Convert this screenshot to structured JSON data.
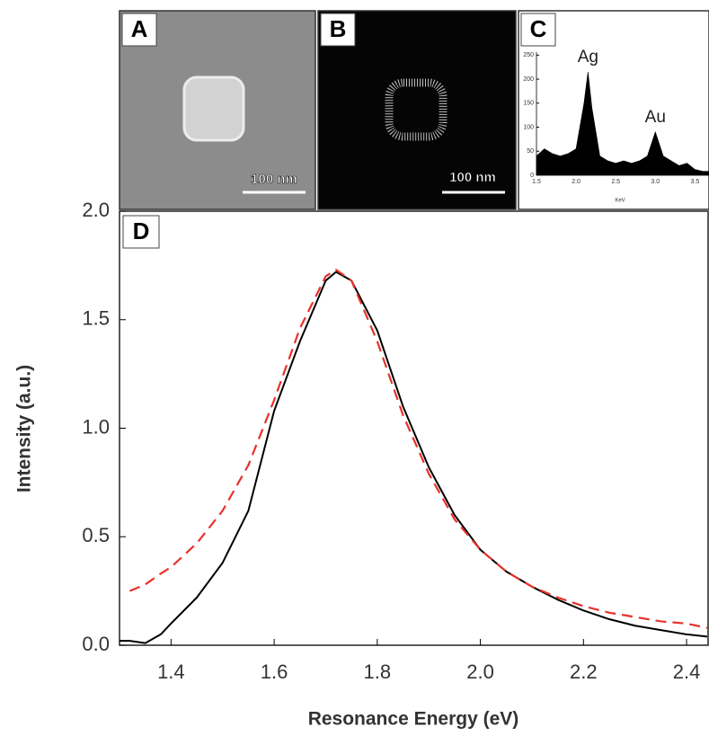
{
  "images": [
    {
      "label": "A",
      "scale_bar": "100 nm"
    },
    {
      "label": "B",
      "scale_bar": "100 nm"
    }
  ],
  "chart_data": [
    {
      "type": "area",
      "label": "C",
      "x_label": "KeV",
      "annotations": [
        {
          "text": "Ag",
          "x": 2.15
        },
        {
          "text": "Au",
          "x": 3.0
        }
      ],
      "x": [
        1.5,
        1.6,
        1.7,
        1.8,
        1.9,
        2.0,
        2.1,
        2.15,
        2.2,
        2.3,
        2.4,
        2.5,
        2.6,
        2.7,
        2.8,
        2.9,
        3.0,
        3.1,
        3.2,
        3.3,
        3.4,
        3.5,
        3.6,
        3.7
      ],
      "values": [
        40,
        55,
        45,
        40,
        45,
        55,
        150,
        215,
        140,
        40,
        30,
        25,
        30,
        25,
        30,
        40,
        90,
        40,
        30,
        20,
        25,
        12,
        8,
        8
      ],
      "color": "#000000",
      "xlim": [
        1.5,
        3.7
      ],
      "ylim": [
        0,
        260
      ],
      "xticks": [
        1.5,
        {
          "value": 2,
          "label": "2.0"
        },
        2.5,
        {
          "value": 3,
          "label": "3.0"
        },
        3.5
      ],
      "yticks": [
        0,
        50,
        100,
        150,
        200,
        250
      ]
    },
    {
      "type": "line",
      "label": "D",
      "x_label": "Resonance Energy (eV)",
      "y_label": "Intensity (a.u.)",
      "x": [
        1.3,
        1.32,
        1.35,
        1.38,
        1.4,
        1.45,
        1.5,
        1.55,
        1.6,
        1.65,
        1.7,
        1.72,
        1.75,
        1.8,
        1.85,
        1.9,
        1.95,
        2.0,
        2.05,
        2.1,
        2.15,
        2.2,
        2.25,
        2.3,
        2.35,
        2.4,
        2.44
      ],
      "series": [
        {
          "color": "#000000",
          "dash": false,
          "values": [
            0.02,
            0.02,
            0.01,
            0.05,
            0.1,
            0.22,
            0.38,
            0.62,
            1.08,
            1.4,
            1.68,
            1.72,
            1.68,
            1.45,
            1.1,
            0.82,
            0.6,
            0.44,
            0.34,
            0.27,
            0.21,
            0.16,
            0.12,
            0.09,
            0.07,
            0.05,
            0.04
          ]
        },
        {
          "color": "#e8312a",
          "dash": true,
          "values": [
            null,
            0.25,
            0.28,
            0.33,
            0.36,
            0.47,
            0.62,
            0.83,
            1.13,
            1.46,
            1.7,
            1.73,
            1.68,
            1.4,
            1.06,
            0.79,
            0.58,
            0.44,
            0.34,
            0.27,
            0.22,
            0.18,
            0.15,
            0.13,
            0.11,
            0.1,
            0.08
          ]
        }
      ],
      "xlim": [
        1.3,
        2.44
      ],
      "ylim": [
        0,
        2
      ],
      "xticks": [
        1.4,
        1.6,
        1.8,
        {
          "value": 2,
          "label": "2.0"
        },
        2.2,
        2.4
      ],
      "yticks": [
        {
          "value": 0,
          "label": "0.0"
        },
        0.5,
        {
          "value": 1,
          "label": "1.0"
        },
        1.5,
        {
          "value": 2,
          "label": "2.0"
        }
      ]
    }
  ]
}
